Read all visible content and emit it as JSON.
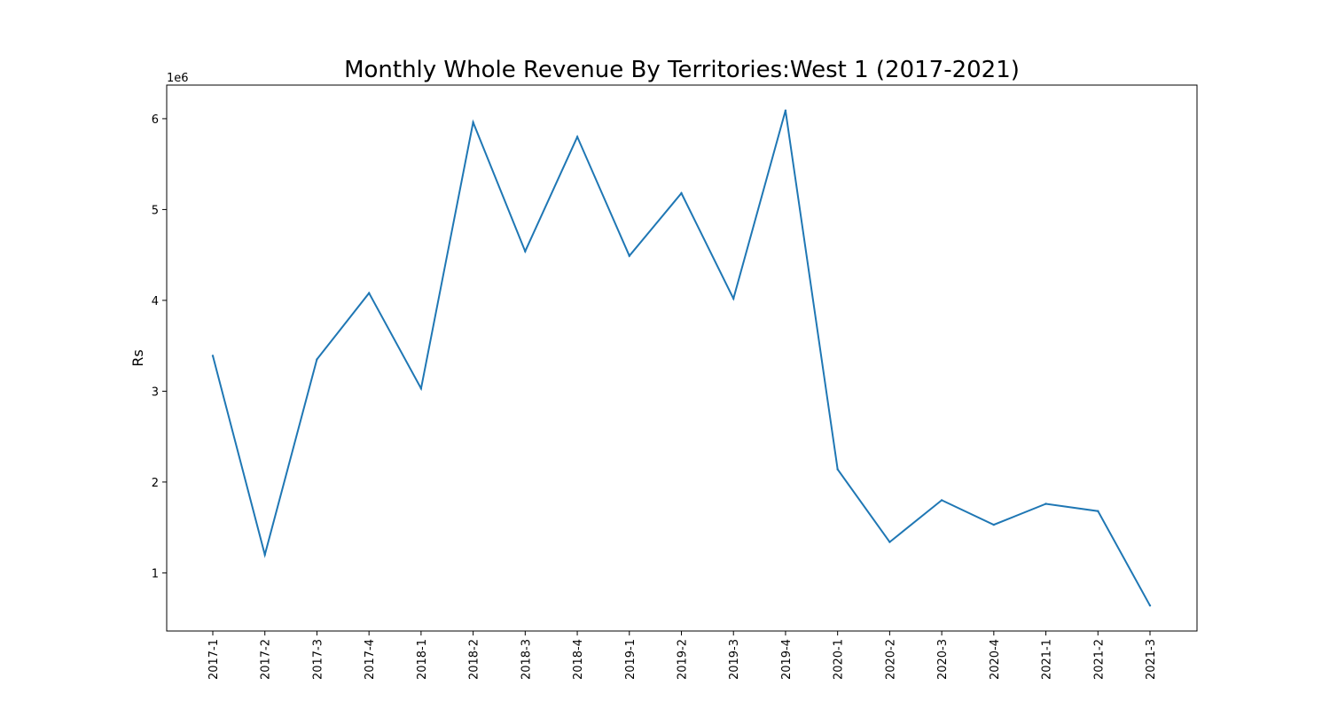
{
  "chart_data": {
    "type": "line",
    "title": "Monthly Whole Revenue By Territories:West 1 (2017-2021)",
    "xlabel": "",
    "ylabel": "Rs",
    "y_offset_label": "1e6",
    "categories": [
      "2017-1",
      "2017-2",
      "2017-3",
      "2017-4",
      "2018-1",
      "2018-2",
      "2018-3",
      "2018-4",
      "2019-1",
      "2019-2",
      "2019-3",
      "2019-4",
      "2020-1",
      "2020-2",
      "2020-3",
      "2020-4",
      "2021-1",
      "2021-2",
      "2021-3"
    ],
    "series": [
      {
        "color": "#1f77b4",
        "values": [
          3390000,
          1200000,
          3350000,
          4080000,
          3030000,
          5960000,
          4540000,
          5800000,
          4490000,
          5180000,
          4020000,
          6090000,
          2140000,
          1340000,
          1800000,
          1530000,
          1760000,
          1680000,
          640000
        ]
      }
    ],
    "yticks": [
      1000000,
      2000000,
      3000000,
      4000000,
      5000000,
      6000000
    ],
    "ytick_labels": [
      "1",
      "2",
      "3",
      "4",
      "5",
      "6"
    ],
    "ylim": [
      360000,
      6370000
    ],
    "grid": false,
    "legend": "none"
  }
}
